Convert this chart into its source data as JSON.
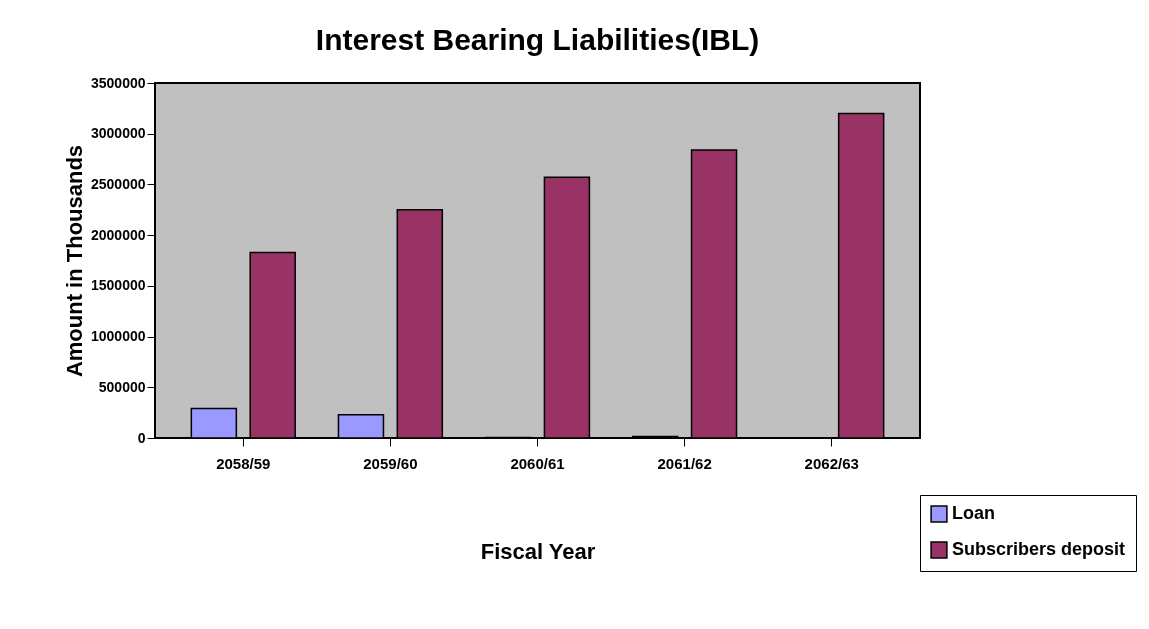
{
  "chart_data": {
    "type": "bar",
    "title": "Interest Bearing Liabilities(IBL)",
    "xlabel": "Fiscal Year",
    "ylabel": "Amount in Thousands",
    "categories": [
      "2058/59",
      "2059/60",
      "2060/61",
      "2061/62",
      "2062/63"
    ],
    "series": [
      {
        "name": "Loan",
        "color": "#9999ff",
        "values": [
          290000,
          230000,
          5000,
          15000,
          null
        ]
      },
      {
        "name": "Subscribers deposit",
        "color": "#993366",
        "values": [
          1830000,
          2250000,
          2570000,
          2840000,
          3200000
        ]
      }
    ],
    "ylim": [
      0,
      3500000
    ],
    "yticks": [
      0,
      500000,
      1000000,
      1500000,
      2000000,
      2500000,
      3000000,
      3500000
    ],
    "grid": false,
    "legend": "bottom right"
  }
}
